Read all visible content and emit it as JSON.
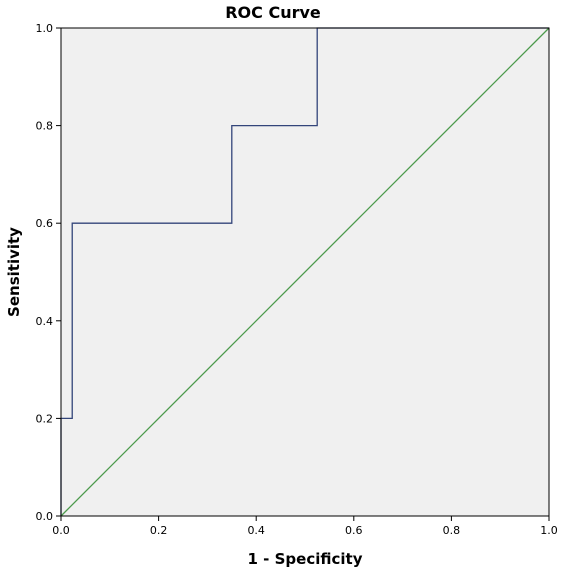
{
  "chart_data": {
    "type": "line",
    "title": "ROC Curve",
    "xlabel": "1 - Specificity",
    "ylabel": "Sensitivity",
    "xlim": [
      0,
      1
    ],
    "ylim": [
      0,
      1
    ],
    "x_ticks": [
      "0.0",
      "0.2",
      "0.4",
      "0.6",
      "0.8",
      "1.0"
    ],
    "y_ticks": [
      "0.0",
      "0.2",
      "0.4",
      "0.6",
      "0.8",
      "1.0"
    ],
    "grid": false,
    "series": [
      {
        "name": "",
        "color": "#33457a",
        "step": true,
        "points": [
          {
            "x": 0.0,
            "y": 0.0
          },
          {
            "x": 0.0,
            "y": 0.2
          },
          {
            "x": 0.023,
            "y": 0.2
          },
          {
            "x": 0.023,
            "y": 0.6
          },
          {
            "x": 0.35,
            "y": 0.6
          },
          {
            "x": 0.35,
            "y": 0.8
          },
          {
            "x": 0.525,
            "y": 0.8
          },
          {
            "x": 0.525,
            "y": 1.0
          },
          {
            "x": 1.0,
            "y": 1.0
          }
        ]
      },
      {
        "name": "",
        "color": "#4c9a4c",
        "step": false,
        "points": [
          {
            "x": 0.0,
            "y": 0.0
          },
          {
            "x": 1.0,
            "y": 1.0
          }
        ]
      }
    ],
    "plot_background": "#f0f0f0"
  }
}
